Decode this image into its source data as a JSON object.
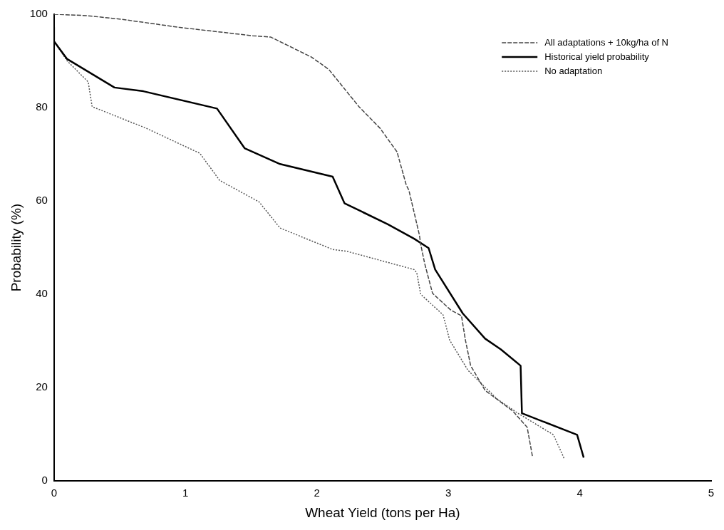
{
  "chart_data": {
    "type": "line",
    "xlabel": "Wheat Yield (tons per Ha)",
    "ylabel": "Probability (%)",
    "xlim": [
      0,
      5
    ],
    "xticks": [
      0,
      1,
      2,
      3,
      4,
      5
    ],
    "ylim": [
      0,
      100
    ],
    "yticks": [
      0,
      20,
      40,
      60,
      80,
      100
    ],
    "grid": false,
    "legend": "top right",
    "marker": "none",
    "series": [
      {
        "name": "All adaptations + 10kg/ha of N",
        "color": "#444444",
        "line_style": "dashed",
        "x": [
          0,
          0.25,
          0.52,
          0.95,
          1.51,
          1.65,
          1.96,
          2.09,
          2.32,
          2.48,
          2.61,
          2.68,
          2.7,
          2.78,
          2.79,
          2.82,
          2.88,
          3.02,
          3.1,
          3.13,
          3.17,
          3.28,
          3.49,
          3.6,
          3.64
        ],
        "values": [
          100,
          99.7,
          98.9,
          97.2,
          95.4,
          95.1,
          90.8,
          88.2,
          80.2,
          75.6,
          70.5,
          63.4,
          62.3,
          52.7,
          50.7,
          46.6,
          40.2,
          36.6,
          35.4,
          30.2,
          24.7,
          19.4,
          15,
          11.5,
          5.3
        ]
      },
      {
        "name": "Historical yield probability",
        "color": "#000000",
        "line_style": "solid",
        "x": [
          0,
          0,
          0.1,
          0.46,
          0.68,
          1.24,
          1.45,
          1.72,
          2.12,
          2.21,
          2.54,
          2.74,
          2.85,
          2.9,
          3.11,
          3.28,
          3.4,
          3.55,
          3.56,
          3.98,
          4.03
        ],
        "values": [
          97.2,
          94.2,
          90.4,
          84.3,
          83.5,
          79.8,
          71.3,
          67.9,
          65.2,
          59.5,
          55,
          51.9,
          49.9,
          45.3,
          35.9,
          30.5,
          28.2,
          24.7,
          14.5,
          9.9,
          5
        ]
      },
      {
        "name": "No adaptation",
        "color": "#555555",
        "line_style": "dotted",
        "x": [
          0,
          0.1,
          0.26,
          0.29,
          0.7,
          1.11,
          1.26,
          1.56,
          1.72,
          2.12,
          2.23,
          2.74,
          2.76,
          2.79,
          2.96,
          3.01,
          3.15,
          3.37,
          3.53,
          3.8,
          3.88
        ],
        "values": [
          94.2,
          90,
          85.5,
          80.2,
          75.6,
          70.2,
          64.4,
          59.8,
          54.2,
          49.6,
          49.2,
          45.3,
          44.6,
          40,
          35.6,
          30.2,
          23.7,
          17.6,
          14.5,
          9.9,
          4.9
        ]
      }
    ]
  }
}
